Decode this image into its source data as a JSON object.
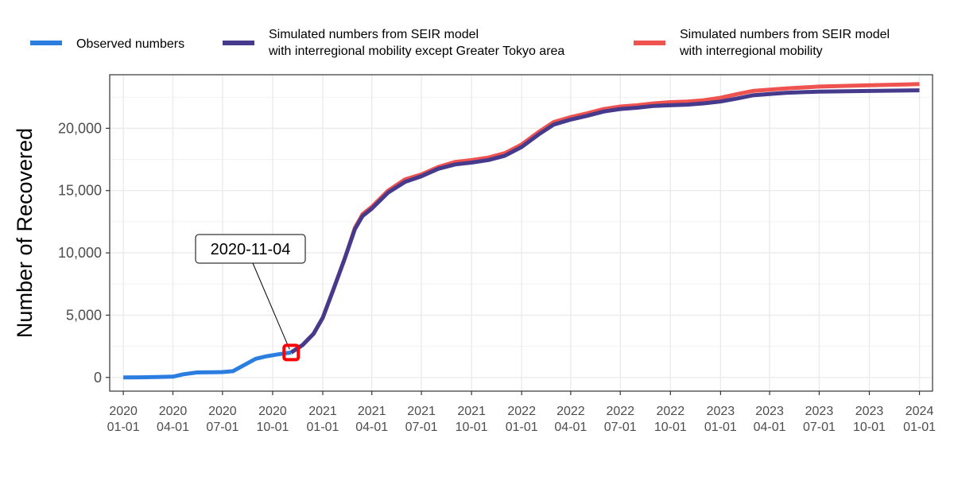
{
  "chart_data": {
    "type": "line",
    "title": "",
    "xlabel": "",
    "ylabel": "Number of Recovered",
    "ylim": [
      -1100,
      24300
    ],
    "xlim": [
      "2019-12-07",
      "2024-01-25"
    ],
    "y_ticks": [
      0,
      5000,
      10000,
      15000,
      20000
    ],
    "y_tick_labels": [
      "0",
      "5,000",
      "10,000",
      "15,000",
      "20,000"
    ],
    "x_ticks": [
      "2020-01-01",
      "2020-04-01",
      "2020-07-01",
      "2020-10-01",
      "2021-01-01",
      "2021-04-01",
      "2021-07-01",
      "2021-10-01",
      "2022-01-01",
      "2022-04-01",
      "2022-07-01",
      "2022-10-01",
      "2023-01-01",
      "2023-04-01",
      "2023-07-01",
      "2023-10-01",
      "2024-01-01"
    ],
    "x_tick_labels": [
      [
        "2020",
        "01-01"
      ],
      [
        "2020",
        "04-01"
      ],
      [
        "2020",
        "07-01"
      ],
      [
        "2020",
        "10-01"
      ],
      [
        "2021",
        "01-01"
      ],
      [
        "2021",
        "04-01"
      ],
      [
        "2021",
        "07-01"
      ],
      [
        "2021",
        "10-01"
      ],
      [
        "2022",
        "01-01"
      ],
      [
        "2022",
        "04-01"
      ],
      [
        "2022",
        "07-01"
      ],
      [
        "2022",
        "10-01"
      ],
      [
        "2023",
        "01-01"
      ],
      [
        "2023",
        "04-01"
      ],
      [
        "2023",
        "07-01"
      ],
      [
        "2023",
        "10-01"
      ],
      [
        "2024",
        "01-01"
      ]
    ],
    "grid": true,
    "legend_position": "top",
    "series": [
      {
        "name": "Observed numbers",
        "color": "#2B7DE0",
        "points": [
          [
            "2020-01-01",
            0
          ],
          [
            "2020-02-01",
            10
          ],
          [
            "2020-03-01",
            30
          ],
          [
            "2020-04-01",
            60
          ],
          [
            "2020-04-20",
            250
          ],
          [
            "2020-05-15",
            400
          ],
          [
            "2020-06-15",
            420
          ],
          [
            "2020-07-01",
            430
          ],
          [
            "2020-07-20",
            500
          ],
          [
            "2020-08-10",
            1000
          ],
          [
            "2020-08-31",
            1500
          ],
          [
            "2020-09-20",
            1700
          ],
          [
            "2020-10-10",
            1850
          ],
          [
            "2020-11-04",
            2000
          ]
        ]
      },
      {
        "name": "Simulated numbers from SEIR model with interregional mobility",
        "color": "#EF5350",
        "points": [
          [
            "2020-11-04",
            2000
          ],
          [
            "2020-11-25",
            2600
          ],
          [
            "2020-12-15",
            3500
          ],
          [
            "2021-01-01",
            4800
          ],
          [
            "2021-01-20",
            7000
          ],
          [
            "2021-02-10",
            9500
          ],
          [
            "2021-03-01",
            12000
          ],
          [
            "2021-03-15",
            13100
          ],
          [
            "2021-04-01",
            13700
          ],
          [
            "2021-05-01",
            15000
          ],
          [
            "2021-06-01",
            15900
          ],
          [
            "2021-07-01",
            16300
          ],
          [
            "2021-08-01",
            16900
          ],
          [
            "2021-09-01",
            17300
          ],
          [
            "2021-10-01",
            17450
          ],
          [
            "2021-11-01",
            17650
          ],
          [
            "2021-12-01",
            18000
          ],
          [
            "2022-01-01",
            18700
          ],
          [
            "2022-02-01",
            19700
          ],
          [
            "2022-03-01",
            20500
          ],
          [
            "2022-04-01",
            20900
          ],
          [
            "2022-05-01",
            21200
          ],
          [
            "2022-06-01",
            21550
          ],
          [
            "2022-07-01",
            21750
          ],
          [
            "2022-08-01",
            21850
          ],
          [
            "2022-09-01",
            22000
          ],
          [
            "2022-10-01",
            22100
          ],
          [
            "2022-11-01",
            22150
          ],
          [
            "2022-12-01",
            22250
          ],
          [
            "2023-01-01",
            22450
          ],
          [
            "2023-02-01",
            22750
          ],
          [
            "2023-03-01",
            23000
          ],
          [
            "2023-04-01",
            23100
          ],
          [
            "2023-05-01",
            23200
          ],
          [
            "2023-07-01",
            23350
          ],
          [
            "2023-10-01",
            23450
          ],
          [
            "2024-01-01",
            23550
          ]
        ]
      },
      {
        "name": "Simulated numbers from SEIR model with interregional mobility except Greater Tokyo area",
        "color": "#463A8C",
        "points": [
          [
            "2020-11-04",
            2000
          ],
          [
            "2020-11-25",
            2600
          ],
          [
            "2020-12-15",
            3500
          ],
          [
            "2021-01-01",
            4800
          ],
          [
            "2021-01-20",
            7000
          ],
          [
            "2021-02-10",
            9500
          ],
          [
            "2021-03-01",
            11900
          ],
          [
            "2021-03-15",
            12950
          ],
          [
            "2021-04-01",
            13550
          ],
          [
            "2021-05-01",
            14850
          ],
          [
            "2021-06-01",
            15700
          ],
          [
            "2021-07-01",
            16150
          ],
          [
            "2021-08-01",
            16750
          ],
          [
            "2021-09-01",
            17100
          ],
          [
            "2021-10-01",
            17250
          ],
          [
            "2021-11-01",
            17450
          ],
          [
            "2021-12-01",
            17800
          ],
          [
            "2022-01-01",
            18500
          ],
          [
            "2022-02-01",
            19500
          ],
          [
            "2022-03-01",
            20300
          ],
          [
            "2022-04-01",
            20700
          ],
          [
            "2022-05-01",
            21000
          ],
          [
            "2022-06-01",
            21350
          ],
          [
            "2022-07-01",
            21550
          ],
          [
            "2022-08-01",
            21650
          ],
          [
            "2022-09-01",
            21800
          ],
          [
            "2022-10-01",
            21850
          ],
          [
            "2022-11-01",
            21900
          ],
          [
            "2022-12-01",
            22000
          ],
          [
            "2023-01-01",
            22150
          ],
          [
            "2023-02-01",
            22400
          ],
          [
            "2023-03-01",
            22650
          ],
          [
            "2023-04-01",
            22750
          ],
          [
            "2023-05-01",
            22850
          ],
          [
            "2023-07-01",
            22950
          ],
          [
            "2023-10-01",
            23000
          ],
          [
            "2024-01-01",
            23050
          ]
        ]
      }
    ],
    "legend": [
      {
        "lines": [
          "Observed numbers"
        ],
        "color": "#2B7DE0"
      },
      {
        "lines": [
          "Simulated numbers from SEIR model",
          "with interregional mobility except Greater Tokyo area"
        ],
        "color": "#463A8C"
      },
      {
        "lines": [
          "Simulated numbers from SEIR model",
          "with interregional mobility"
        ],
        "color": "#EF5350"
      }
    ],
    "annotation": {
      "label": "2020-11-04",
      "point": [
        "2020-11-04",
        2000
      ],
      "marker_color": "#FF0000"
    }
  }
}
